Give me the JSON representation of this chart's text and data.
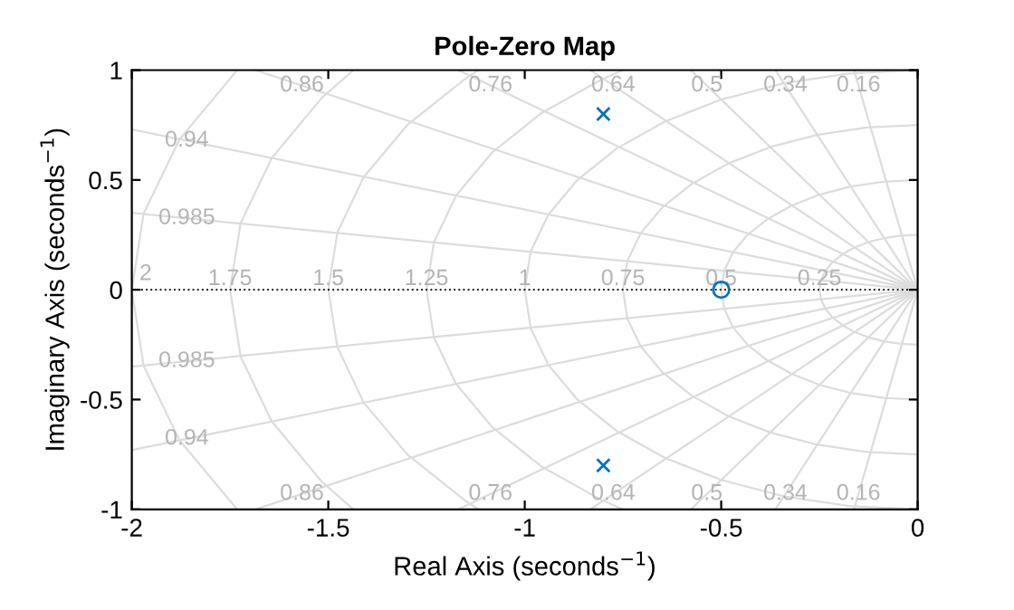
{
  "chart_data": {
    "type": "scatter",
    "title": "Pole-Zero Map",
    "xlabel": "Real Axis (seconds$^{−1}$)",
    "ylabel": "Imaginary Axis (seconds$^{−1}$)",
    "series": [
      {
        "type": "line",
        "name": "0.16",
        "color": "#dcdcdc",
        "x": [
          0,
          -0.162
        ],
        "values": [
          0,
          1
        ]
      },
      {
        "type": "line",
        "name": "0.34",
        "color": "#dcdcdc",
        "x": [
          0,
          -0.362
        ],
        "values": [
          0,
          1
        ]
      },
      {
        "type": "line",
        "name": "0.5",
        "color": "#dcdcdc",
        "x": [
          0,
          -0.577
        ],
        "values": [
          0,
          1
        ]
      },
      {
        "type": "line",
        "name": "0.64",
        "color": "#dcdcdc",
        "x": [
          0,
          -0.833
        ],
        "values": [
          0,
          1
        ]
      },
      {
        "type": "line",
        "name": "0.76",
        "color": "#dcdcdc",
        "x": [
          0,
          -1.169
        ],
        "values": [
          0,
          1
        ]
      },
      {
        "type": "line",
        "name": "0.86",
        "color": "#dcdcdc",
        "x": [
          0,
          -1.685
        ],
        "values": [
          0,
          1
        ]
      },
      {
        "type": "line",
        "name": "0.94",
        "color": "#dcdcdc",
        "x": [
          0,
          -2
        ],
        "values": [
          0,
          0.73
        ]
      },
      {
        "type": "line",
        "name": "0.985",
        "color": "#dcdcdc",
        "x": [
          0,
          -2
        ],
        "values": [
          0,
          0.35
        ]
      },
      {
        "type": "line",
        "name": "0.16",
        "color": "#dcdcdc",
        "x": [
          0,
          -0.162
        ],
        "values": [
          0,
          -1
        ]
      },
      {
        "type": "line",
        "name": "0.34",
        "color": "#dcdcdc",
        "x": [
          0,
          -0.362
        ],
        "values": [
          0,
          -1
        ]
      },
      {
        "type": "line",
        "name": "0.5",
        "color": "#dcdcdc",
        "x": [
          0,
          -0.577
        ],
        "values": [
          0,
          -1
        ]
      },
      {
        "type": "line",
        "name": "0.64",
        "color": "#dcdcdc",
        "x": [
          0,
          -0.833
        ],
        "values": [
          0,
          -1
        ]
      },
      {
        "type": "line",
        "name": "0.76",
        "color": "#dcdcdc",
        "x": [
          0,
          -1.169
        ],
        "values": [
          0,
          -1
        ]
      },
      {
        "type": "line",
        "name": "0.86",
        "color": "#dcdcdc",
        "x": [
          0,
          -1.685
        ],
        "values": [
          0,
          -1
        ]
      },
      {
        "type": "line",
        "name": "0.94",
        "color": "#dcdcdc",
        "x": [
          0,
          -2
        ],
        "values": [
          0,
          -0.73
        ]
      },
      {
        "type": "line",
        "name": "0.985",
        "color": "#dcdcdc",
        "x": [
          0,
          -2
        ],
        "values": [
          0,
          -0.35
        ]
      },
      {
        "type": "line",
        "name": "0.25",
        "color": "#dcdcdc",
        "x": [
          0,
          -0.043,
          -0.086,
          -0.125,
          -0.161,
          -0.192,
          -0.217,
          -0.235,
          -0.246,
          -0.25,
          -0.246,
          -0.235,
          -0.217,
          -0.192,
          -0.161,
          -0.125,
          -0.086,
          -0.043,
          0
        ],
        "values": [
          0.25,
          0.246,
          0.235,
          0.217,
          0.192,
          0.161,
          0.125,
          0.086,
          0.043,
          0,
          -0.043,
          -0.086,
          -0.125,
          -0.161,
          -0.192,
          -0.217,
          -0.235,
          -0.246,
          -0.25
        ]
      },
      {
        "type": "line",
        "name": "0.5",
        "color": "#dcdcdc",
        "x": [
          0,
          -0.087,
          -0.171,
          -0.25,
          -0.321,
          -0.383,
          -0.433,
          -0.47,
          -0.492,
          -0.5,
          -0.492,
          -0.47,
          -0.433,
          -0.383,
          -0.321,
          -0.25,
          -0.171,
          -0.087,
          0
        ],
        "values": [
          0.5,
          0.492,
          0.47,
          0.433,
          0.383,
          0.321,
          0.25,
          0.171,
          0.087,
          0,
          -0.087,
          -0.171,
          -0.25,
          -0.321,
          -0.383,
          -0.433,
          -0.47,
          -0.492,
          -0.5
        ]
      },
      {
        "type": "line",
        "name": "0.75",
        "color": "#dcdcdc",
        "x": [
          0,
          -0.13,
          -0.257,
          -0.375,
          -0.482,
          -0.575,
          -0.65,
          -0.705,
          -0.739,
          -0.75,
          -0.739,
          -0.705,
          -0.65,
          -0.575,
          -0.482,
          -0.375,
          -0.257,
          -0.13,
          0
        ],
        "values": [
          0.75,
          0.739,
          0.705,
          0.65,
          0.575,
          0.482,
          0.375,
          0.257,
          0.13,
          0,
          -0.13,
          -0.257,
          -0.375,
          -0.482,
          -0.575,
          -0.65,
          -0.705,
          -0.739,
          -0.75
        ]
      },
      {
        "type": "line",
        "name": "1",
        "color": "#dcdcdc",
        "x": [
          0,
          -0.174,
          -0.342,
          -0.5,
          -0.643,
          -0.766,
          -0.866,
          -0.94,
          -0.985,
          -1,
          -0.985,
          -0.94,
          -0.866,
          -0.766,
          -0.643,
          -0.5,
          -0.342,
          -0.174,
          0
        ],
        "values": [
          1,
          0.985,
          0.94,
          0.866,
          0.766,
          0.643,
          0.5,
          0.342,
          0.174,
          0,
          -0.174,
          -0.342,
          -0.5,
          -0.643,
          -0.766,
          -0.866,
          -0.94,
          -0.985,
          -1
        ]
      },
      {
        "type": "line",
        "name": "1.25",
        "color": "#dcdcdc",
        "x": [
          -0.75,
          -0.804,
          -0.958,
          -1.083,
          -1.175,
          -1.231,
          -1.25,
          -1.231,
          -1.175,
          -1.083,
          -0.958,
          -0.804,
          -0.75
        ],
        "values": [
          1,
          0.958,
          0.804,
          0.625,
          0.428,
          0.217,
          0,
          -0.217,
          -0.428,
          -0.625,
          -0.804,
          -0.958,
          -1
        ]
      },
      {
        "type": "line",
        "name": "1.5",
        "color": "#dcdcdc",
        "x": [
          -1.118,
          -1.149,
          -1.299,
          -1.41,
          -1.477,
          -1.5,
          -1.477,
          -1.41,
          -1.299,
          -1.149,
          -1.118
        ],
        "values": [
          1,
          0.964,
          0.75,
          0.513,
          0.26,
          0,
          -0.26,
          -0.513,
          -0.75,
          -0.964,
          -1
        ]
      },
      {
        "type": "line",
        "name": "1.75",
        "color": "#dcdcdc",
        "x": [
          -1.436,
          -1.516,
          -1.644,
          -1.723,
          -1.75,
          -1.723,
          -1.644,
          -1.516,
          -1.436
        ],
        "values": [
          1,
          0.875,
          0.599,
          0.304,
          0,
          -0.304,
          -0.599,
          -0.875,
          -1
        ]
      },
      {
        "type": "line",
        "name": "2",
        "color": "#dcdcdc",
        "x": [
          -1.732,
          -1.879,
          -1.97,
          -2,
          -1.97,
          -1.879,
          -1.732
        ],
        "values": [
          1,
          0.684,
          0.347,
          0,
          -0.347,
          -0.684,
          -1
        ]
      },
      {
        "marker": "cross",
        "color": "#0072bd",
        "x": [
          -0.8,
          -0.8
        ],
        "values": [
          0.8,
          -0.8
        ]
      },
      {
        "marker": "circle",
        "color": "#0072bd",
        "x": [
          -0.5
        ],
        "values": [
          0
        ]
      }
    ],
    "xlim": [
      -2,
      0
    ],
    "ylim": [
      -1,
      1
    ],
    "xticks": [
      -2,
      -1.5,
      -1,
      -0.5,
      0
    ],
    "yticks": [
      -1,
      -0.5,
      0,
      0.5,
      1
    ],
    "ref_lines": [
      {
        "axis": "y",
        "value": 0,
        "line_style": "dotted",
        "color": "#000000"
      }
    ]
  }
}
